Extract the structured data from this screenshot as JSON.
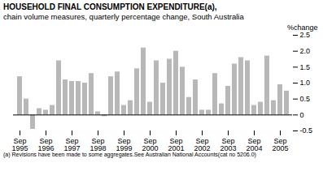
{
  "chart_data": {
    "type": "bar",
    "title": "HOUSEHOLD FINAL CONSUMPTION EXPENDITURE(a),",
    "subtitle": "chain volume measures, quarterly percentage change, South Australia",
    "ylabel": "%change",
    "footnote": "(a) Revisions have been made to some aggregates.See Australian National Accounts(cat no 5206.0)",
    "categories": [
      "Sep\n1995",
      null,
      null,
      null,
      "Sep\n1996",
      null,
      null,
      null,
      "Sep\n1997",
      null,
      null,
      null,
      "Sep\n1998",
      null,
      null,
      null,
      "Sep\n1999",
      null,
      null,
      null,
      "Sep\n2000",
      null,
      null,
      null,
      "Sep\n2001",
      null,
      null,
      null,
      "Sep\n2002",
      null,
      null,
      null,
      "Sep\n2003",
      null,
      null,
      null,
      "Sep\n2004",
      null,
      null,
      null,
      "Sep\n2005",
      null
    ],
    "values": [
      1.2,
      0.5,
      -0.45,
      0.2,
      0.15,
      0.3,
      1.7,
      1.1,
      1.05,
      1.05,
      1.0,
      1.3,
      0.1,
      -0.05,
      1.2,
      1.35,
      0.3,
      0.45,
      1.45,
      2.1,
      0.4,
      1.7,
      1.0,
      1.75,
      2.0,
      1.5,
      0.55,
      1.1,
      0.15,
      0.15,
      1.3,
      0.35,
      0.9,
      1.6,
      1.8,
      1.7,
      0.3,
      0.4,
      1.85,
      0.45,
      0.95,
      0.75
    ],
    "color": "#b8b8b8",
    "ylim": [
      -0.5,
      2.5
    ],
    "yticks": [
      -0.5,
      0,
      0.5,
      {
        "value": 1.0,
        "label": "1.0"
      },
      1.5,
      {
        "value": 2.0,
        "label": "2.0"
      },
      2.5
    ],
    "grid": false
  }
}
